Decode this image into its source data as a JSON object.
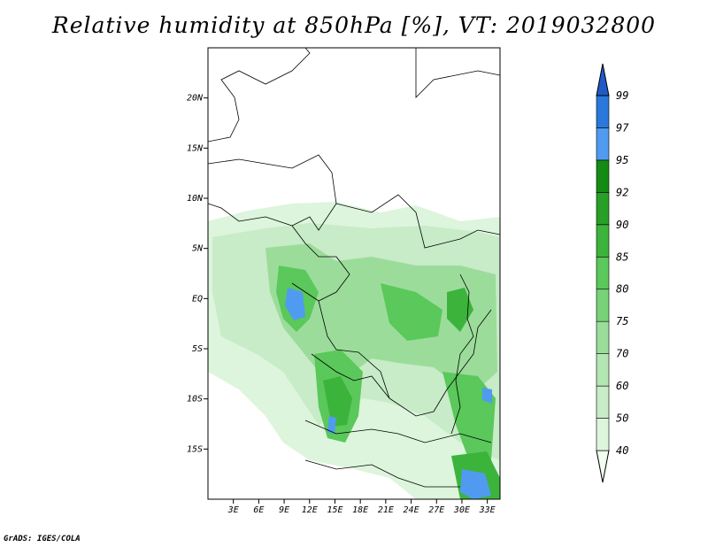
{
  "title": "Relative humidity at 850hPa [%], VT: 2019032800",
  "footer": "GrADS: IGES/COLA",
  "chart_data": {
    "type": "heatmap",
    "variable": "Relative humidity at 850hPa",
    "units": "%",
    "valid_time": "2019032800",
    "lat_ticks": [
      "20N",
      "15N",
      "10N",
      "5N",
      "EQ",
      "5S",
      "10S",
      "15S"
    ],
    "lon_ticks": [
      "3E",
      "6E",
      "9E",
      "12E",
      "15E",
      "18E",
      "21E",
      "24E",
      "27E",
      "30E",
      "33E"
    ],
    "lat_values": [
      20,
      15,
      10,
      5,
      0,
      -5,
      -10,
      -15
    ],
    "lon_values": [
      3,
      6,
      9,
      12,
      15,
      18,
      21,
      24,
      27,
      30,
      33
    ],
    "lon_range": [
      0,
      34.5
    ],
    "lat_range": [
      -20,
      25
    ],
    "colorbar": {
      "levels": [
        "40",
        "50",
        "60",
        "70",
        "75",
        "80",
        "85",
        "90",
        "92",
        "95",
        "97",
        "99"
      ],
      "colors": [
        "#f0fff0",
        "#dcf5dc",
        "#c8ebc8",
        "#b4e6b4",
        "#9bdc9b",
        "#78d278",
        "#5ac85a",
        "#3cb43c",
        "#28a028",
        "#148c14",
        "#509bf0",
        "#2a78dc",
        "#1e5ac8"
      ],
      "extend": "both"
    }
  }
}
